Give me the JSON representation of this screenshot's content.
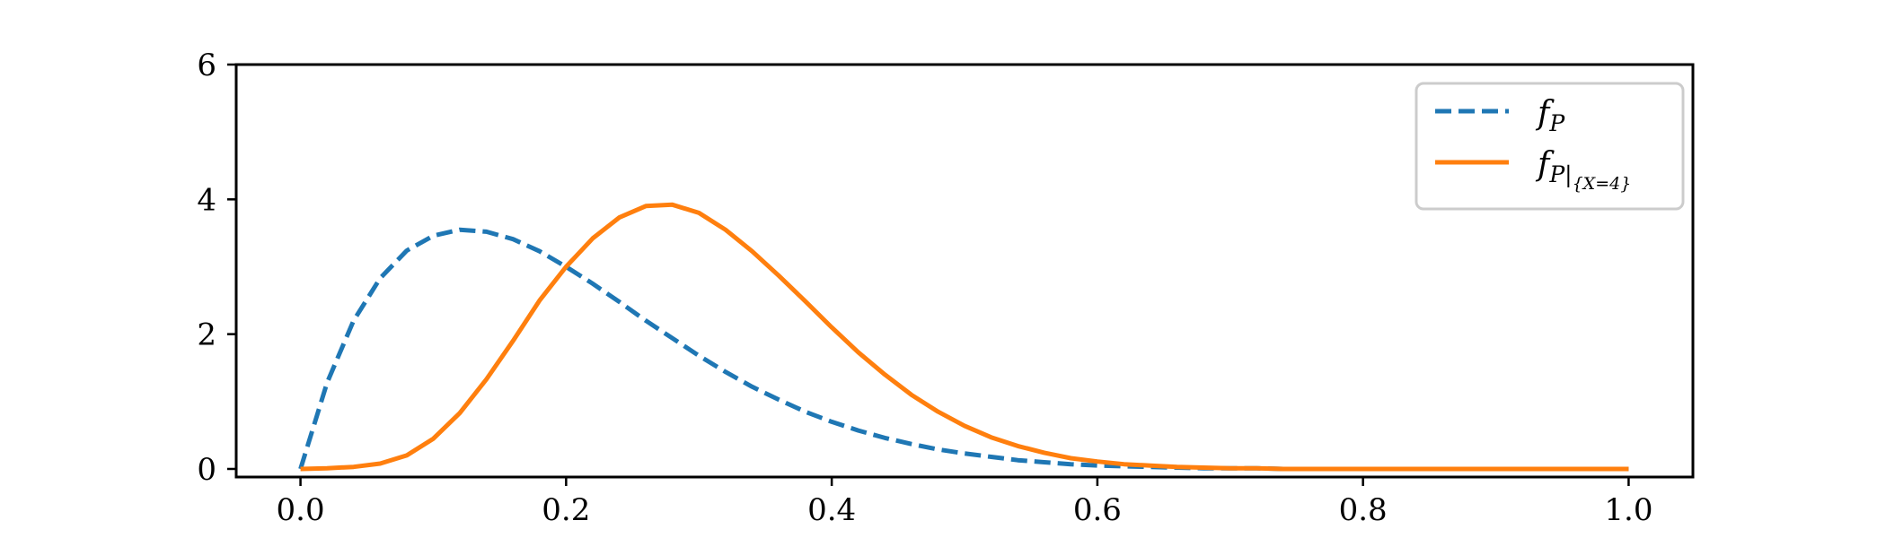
{
  "chart_data": {
    "type": "line",
    "xlim": [
      -0.1,
      2.1
    ],
    "ylim": [
      -0.12,
      6
    ],
    "x_ticks": [
      0.0,
      0.2,
      0.4,
      0.6,
      0.8,
      1.0
    ],
    "x_tick_labels": [
      "0.0",
      "0.2",
      "0.4",
      "0.6",
      "0.8",
      "1.0"
    ],
    "y_ticks": [
      0,
      2,
      4,
      6
    ],
    "y_tick_labels": [
      "0",
      "2",
      "4",
      "6"
    ],
    "grid": false,
    "legend_position": "top-right",
    "series": [
      {
        "name": "f_P",
        "color": "#1f77b4",
        "style": "dashed",
        "x": [
          0.0,
          0.02,
          0.04,
          0.06,
          0.08,
          0.1,
          0.12,
          0.14,
          0.16,
          0.18,
          0.2,
          0.22,
          0.24,
          0.26,
          0.28,
          0.3,
          0.32,
          0.34,
          0.36,
          0.38,
          0.4,
          0.42,
          0.44,
          0.46,
          0.48,
          0.5,
          0.52,
          0.54,
          0.56,
          0.58,
          0.6,
          0.62,
          0.64,
          0.66,
          0.68,
          0.7,
          0.72,
          0.74,
          0.76,
          0.78,
          0.8,
          0.82,
          0.84,
          0.86,
          0.88,
          0.9,
          0.92,
          0.94,
          0.96,
          0.98,
          1.0
        ],
        "y": [
          0.0,
          1.28,
          2.2,
          2.83,
          3.24,
          3.46,
          3.55,
          3.52,
          3.41,
          3.23,
          3.0,
          2.75,
          2.48,
          2.2,
          1.94,
          1.68,
          1.44,
          1.22,
          1.03,
          0.85,
          0.7,
          0.57,
          0.46,
          0.37,
          0.29,
          0.23,
          0.18,
          0.13,
          0.1,
          0.07,
          0.05,
          0.04,
          0.03,
          0.02,
          0.01,
          0.01,
          0.01,
          0.0,
          0.0,
          0.0,
          0.0,
          0.0,
          0.0,
          0.0,
          0.0,
          0.0,
          0.0,
          0.0,
          0.0,
          0.0,
          0.0
        ]
      },
      {
        "name": "f_{P|{X=4}}",
        "color": "#ff7f0e",
        "style": "solid",
        "x": [
          0.0,
          0.02,
          0.04,
          0.06,
          0.08,
          0.1,
          0.12,
          0.14,
          0.16,
          0.18,
          0.2,
          0.22,
          0.24,
          0.26,
          0.28,
          0.3,
          0.32,
          0.34,
          0.36,
          0.38,
          0.4,
          0.42,
          0.44,
          0.46,
          0.48,
          0.5,
          0.52,
          0.54,
          0.56,
          0.58,
          0.6,
          0.62,
          0.64,
          0.66,
          0.68,
          0.7,
          0.72,
          0.74,
          0.76,
          0.78,
          0.8,
          0.82,
          0.84,
          0.86,
          0.88,
          0.9,
          0.92,
          0.94,
          0.96,
          0.98,
          1.0
        ],
        "y": [
          0.0,
          0.01,
          0.03,
          0.08,
          0.2,
          0.45,
          0.83,
          1.33,
          1.9,
          2.5,
          3.0,
          3.42,
          3.73,
          3.9,
          3.92,
          3.8,
          3.55,
          3.23,
          2.87,
          2.49,
          2.1,
          1.73,
          1.4,
          1.1,
          0.85,
          0.64,
          0.47,
          0.34,
          0.24,
          0.16,
          0.11,
          0.07,
          0.05,
          0.03,
          0.02,
          0.01,
          0.01,
          0.0,
          0.0,
          0.0,
          0.0,
          0.0,
          0.0,
          0.0,
          0.0,
          0.0,
          0.0,
          0.0,
          0.0,
          0.0,
          0.0
        ]
      }
    ]
  }
}
